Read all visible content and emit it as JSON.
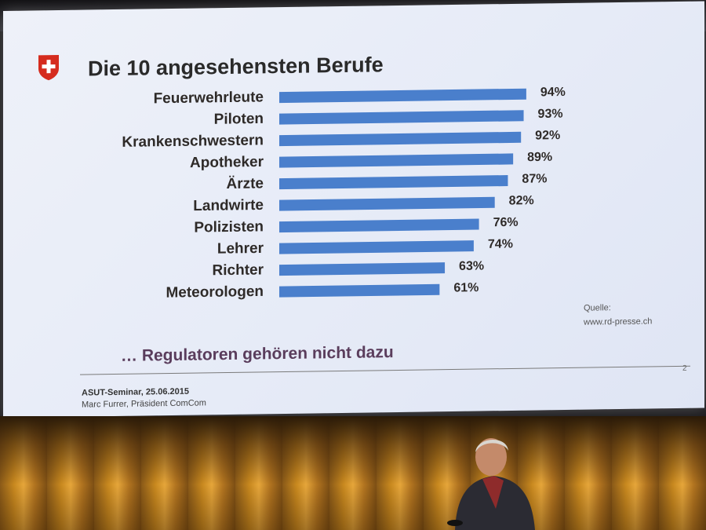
{
  "slide": {
    "title": "Die 10 angesehensten Berufe",
    "source_label": "Quelle:",
    "source_url": "www.rd-presse.ch",
    "subline": "… Regulatoren gehören nicht dazu",
    "page_number": "2",
    "footer_event": "ASUT-Seminar, 25.06.2015",
    "footer_person": "Marc Furrer, Präsident ComCom"
  },
  "colors": {
    "bar": "#4a7fcc",
    "slide_bg": "#e8ecf8",
    "title": "#2a2a2a",
    "subline": "#5a3d5c"
  },
  "chart_data": {
    "type": "bar",
    "orientation": "horizontal",
    "title": "Die 10 angesehensten Berufe",
    "categories": [
      "Feuerwehrleute",
      "Piloten",
      "Krankenschwestern",
      "Apotheker",
      "Ärzte",
      "Landwirte",
      "Polizisten",
      "Lehrer",
      "Richter",
      "Meteorologen"
    ],
    "values": [
      94,
      93,
      92,
      89,
      87,
      82,
      76,
      74,
      63,
      61
    ],
    "value_labels": [
      "94%",
      "93%",
      "92%",
      "89%",
      "87%",
      "82%",
      "76%",
      "74%",
      "63%",
      "61%"
    ],
    "unit": "%",
    "xlim": [
      0,
      100
    ],
    "grid": false,
    "legend": "none"
  }
}
